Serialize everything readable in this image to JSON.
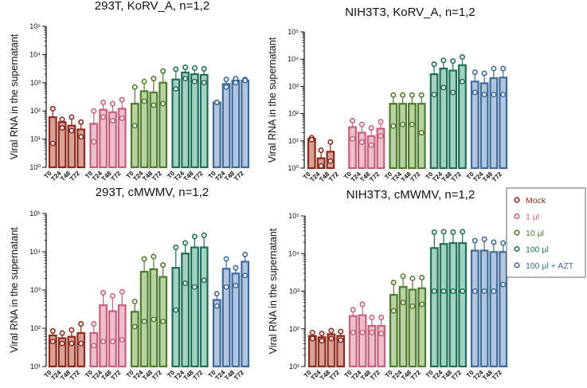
{
  "colors": {
    "Mock": "#8b2a1e",
    "1 µl": "#c4607a",
    "10 µl": "#4f7b2c",
    "100 µl": "#1f6e5a",
    "100 µl + AZT": "#3d6a9a"
  },
  "fills": {
    "Mock": "#d9a196",
    "1 µl": "#efbfcd",
    "10 µl": "#b9d2a2",
    "100 µl": "#a3d2c3",
    "100 µl + AZT": "#b2c6e0"
  },
  "legend": {
    "entries": [
      "Mock",
      "1 µl",
      "10 µl",
      "100 µl",
      "100 µl + AZT"
    ]
  },
  "chart_data": [
    {
      "type": "bar",
      "title": "293T, KoRV_A, n=1,2",
      "ylabel": "Viral RNA in the supernatant",
      "yscale": "log",
      "ylim": [
        1,
        100000
      ],
      "yticks": [
        1,
        10,
        100,
        1000,
        10000,
        100000
      ],
      "ytick_labels": [
        "10⁰",
        "10¹",
        "10²",
        "10³",
        "10⁴",
        "10⁵"
      ],
      "categories": [
        "T0",
        "T24",
        "T48",
        "T72"
      ],
      "series": [
        {
          "name": "Mock",
          "values": [
            60,
            40,
            30,
            22
          ],
          "points": [
            [
              120,
              7
            ],
            [
              50,
              25
            ],
            [
              60,
              20
            ],
            [
              40,
              12
            ]
          ]
        },
        {
          "name": "1 µl",
          "values": [
            35,
            110,
            90,
            120
          ],
          "points": [
            [
              100,
              8
            ],
            [
              200,
              60
            ],
            [
              180,
              45
            ],
            [
              250,
              55
            ]
          ]
        },
        {
          "name": "10 µl",
          "values": [
            180,
            500,
            450,
            1000
          ],
          "points": [
            [
              700,
              30
            ],
            [
              1100,
              220
            ],
            [
              1400,
              160
            ],
            [
              2600,
              180
            ]
          ]
        },
        {
          "name": "100 µl",
          "values": [
            1300,
            2300,
            2000,
            1900
          ],
          "points": [
            [
              3000,
              600
            ],
            [
              3500,
              1400
            ],
            [
              3300,
              1100
            ],
            [
              3100,
              1000
            ]
          ]
        },
        {
          "name": "100 µl + AZT",
          "values": [
            200,
            900,
            1200,
            1200
          ],
          "points": [
            [
              200,
              200
            ],
            [
              1300,
              700
            ],
            [
              1400,
              1000
            ],
            [
              1300,
              1200
            ]
          ]
        }
      ]
    },
    {
      "type": "bar",
      "title": "NIH3T3, KoRV_A, n=1,2",
      "ylabel": "Viral RNA in the supernatant",
      "yscale": "log",
      "ylim": [
        1,
        100000
      ],
      "yticks": [
        1,
        10,
        100,
        1000,
        10000,
        100000
      ],
      "ytick_labels": [
        "10⁰",
        "10¹",
        "10²",
        "10³",
        "10⁴",
        "10⁵"
      ],
      "categories": [
        "T0",
        "T24",
        "T48",
        "T72"
      ],
      "series": [
        {
          "name": "Mock",
          "values": [
            12,
            2.3,
            4,
            null
          ],
          "points": [
            [
              13,
              11
            ],
            [
              4.5,
              1.2
            ],
            [
              9,
              1.8
            ]
          ]
        },
        {
          "name": "1 µl",
          "values": [
            32,
            20,
            15,
            28
          ],
          "points": [
            [
              55,
              12
            ],
            [
              40,
              9
            ],
            [
              30,
              7
            ],
            [
              50,
              15
            ]
          ]
        },
        {
          "name": "10 µl",
          "values": [
            230,
            230,
            230,
            230
          ],
          "points": [
            [
              480,
              35
            ],
            [
              480,
              40
            ],
            [
              480,
              40
            ],
            [
              480,
              20
            ]
          ]
        },
        {
          "name": "100 µl",
          "values": [
            2800,
            4500,
            3800,
            6000
          ],
          "points": [
            [
              6500,
              500
            ],
            [
              9000,
              900
            ],
            [
              8500,
              600
            ],
            [
              12000,
              1500
            ]
          ]
        },
        {
          "name": "100 µl + AZT",
          "values": [
            1500,
            1300,
            2000,
            2100
          ],
          "points": [
            [
              3300,
              600
            ],
            [
              3000,
              500
            ],
            [
              4500,
              500
            ],
            [
              4500,
              500
            ]
          ]
        }
      ]
    },
    {
      "type": "bar",
      "title": "293T, cMWMV, n=1,2",
      "ylabel": "Viral RNA in the supernatant",
      "yscale": "log",
      "ylim": [
        10,
        100000
      ],
      "yticks": [
        10,
        100,
        1000,
        10000,
        100000
      ],
      "ytick_labels": [
        "10¹",
        "10²",
        "10³",
        "10⁴",
        "10⁵"
      ],
      "categories": [
        "T0",
        "T24",
        "T48",
        "T72"
      ],
      "series": [
        {
          "name": "Mock",
          "values": [
            65,
            55,
            60,
            75
          ],
          "points": [
            [
              85,
              45
            ],
            [
              75,
              40
            ],
            [
              90,
              40
            ],
            [
              130,
              40
            ]
          ]
        },
        {
          "name": "1 µl",
          "values": [
            75,
            400,
            280,
            400
          ],
          "points": [
            [
              130,
              35
            ],
            [
              850,
              45
            ],
            [
              700,
              45
            ],
            [
              900,
              50
            ]
          ]
        },
        {
          "name": "10 µl",
          "values": [
            270,
            3000,
            3500,
            2200
          ],
          "points": [
            [
              500,
              110
            ],
            [
              6500,
              150
            ],
            [
              7500,
              170
            ],
            [
              4500,
              150
            ]
          ]
        },
        {
          "name": "100 µl",
          "values": [
            3800,
            9000,
            13000,
            13000
          ],
          "points": [
            [
              13000,
              300
            ],
            [
              17000,
              1500
            ],
            [
              25000,
              1200
            ],
            [
              27000,
              1800
            ]
          ]
        },
        {
          "name": "100 µl + AZT",
          "values": [
            550,
            3600,
            2700,
            5500
          ],
          "points": [
            [
              800,
              380
            ],
            [
              6500,
              1200
            ],
            [
              3800,
              1300
            ],
            [
              8500,
              2400
            ]
          ]
        }
      ]
    },
    {
      "type": "bar",
      "title": "NIH3T3, cMWMV, n=1,2",
      "ylabel": "Viral RNA in the supernatant",
      "yscale": "log",
      "ylim": [
        10,
        100000
      ],
      "yticks": [
        10,
        100,
        1000,
        10000,
        100000
      ],
      "ytick_labels": [
        "10¹",
        "10²",
        "10³",
        "10⁴",
        "10⁵"
      ],
      "categories": [
        "T0",
        "T24",
        "T48",
        "T72"
      ],
      "series": [
        {
          "name": "Mock",
          "values": [
            65,
            60,
            72,
            65
          ],
          "points": [
            [
              80,
              55
            ],
            [
              75,
              48
            ],
            [
              90,
              55
            ],
            [
              85,
              50
            ]
          ]
        },
        {
          "name": "1 µl",
          "values": [
            220,
            230,
            120,
            120
          ],
          "points": [
            [
              320,
              80
            ],
            [
              450,
              80
            ],
            [
              200,
              80
            ],
            [
              200,
              75
            ]
          ]
        },
        {
          "name": "10 µl",
          "values": [
            800,
            1300,
            1100,
            1200
          ],
          "points": [
            [
              1700,
              300
            ],
            [
              2500,
              500
            ],
            [
              2200,
              400
            ],
            [
              2300,
              450
            ]
          ]
        },
        {
          "name": "100 µl",
          "values": [
            14000,
            18000,
            19000,
            19000
          ],
          "points": [
            [
              37000,
              1000
            ],
            [
              38000,
              1000
            ],
            [
              37000,
              1000
            ],
            [
              38000,
              1000
            ]
          ]
        },
        {
          "name": "100 µl + AZT",
          "values": [
            12000,
            12000,
            11000,
            11000
          ],
          "points": [
            [
              22000,
              1000
            ],
            [
              24000,
              1000
            ],
            [
              20000,
              1000
            ],
            [
              19000,
              1500
            ]
          ]
        }
      ]
    }
  ]
}
